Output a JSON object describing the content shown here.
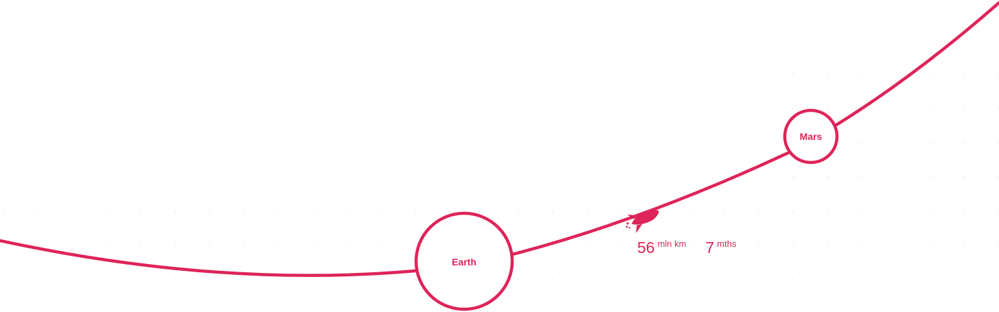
{
  "colors": {
    "accent": "#de2459",
    "background": "#ffffff",
    "grid_dot": "#eeeeee"
  },
  "planets": {
    "earth": {
      "label": "Earth"
    },
    "mars": {
      "label": "Mars"
    }
  },
  "stats": {
    "distance": {
      "value": "56",
      "unit": "mln km"
    },
    "duration": {
      "value": "7",
      "unit": "mths"
    }
  },
  "icons": {
    "rocket": "rocket-icon"
  }
}
